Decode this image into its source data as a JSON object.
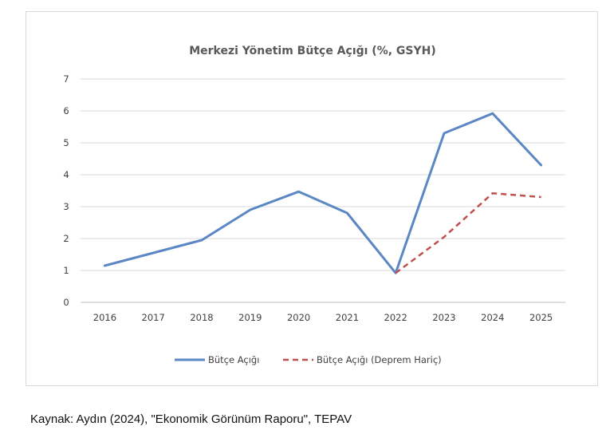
{
  "chart_data": {
    "type": "line",
    "title": "Merkezi Yönetim Bütçe Açığı (%, GSYH)",
    "xlabel": "",
    "ylabel": "",
    "categories": [
      "2016",
      "2017",
      "2018",
      "2019",
      "2020",
      "2021",
      "2022",
      "2023",
      "2024",
      "2025"
    ],
    "ylim": [
      0,
      7
    ],
    "yticks": [
      0,
      1,
      2,
      3,
      4,
      5,
      6,
      7
    ],
    "grid": true,
    "legend_position": "bottom",
    "series": [
      {
        "name": "Bütçe Açığı",
        "color": "#5b87c4",
        "style": "solid",
        "values": [
          1.15,
          1.55,
          1.95,
          2.9,
          3.47,
          2.8,
          0.92,
          5.3,
          5.92,
          4.3
        ]
      },
      {
        "name": "Bütçe Açığı (Deprem Hariç)",
        "color": "#c0504d",
        "style": "dashed",
        "values": [
          null,
          null,
          null,
          null,
          null,
          null,
          0.92,
          2.05,
          3.42,
          3.3
        ]
      }
    ]
  },
  "source_note": "Kaynak: Aydın (2024), \"Ekonomik Görünüm Raporu\", TEPAV"
}
